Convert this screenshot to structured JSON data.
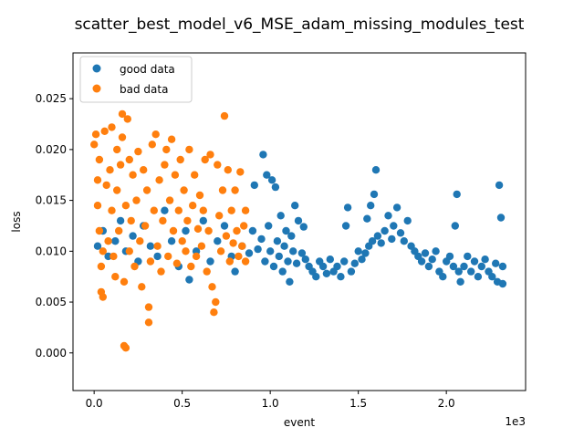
{
  "chart_data": {
    "type": "scatter",
    "title": "scatter_best_model_v6_MSE_adam_missing_modules_test",
    "xlabel": "event",
    "ylabel": "loss",
    "x_offset_text": "1e3",
    "xlim": [
      -0.12,
      2.45
    ],
    "ylim": [
      -0.0037,
      0.0295
    ],
    "xticks": [
      0.0,
      0.5,
      1.0,
      1.5,
      2.0
    ],
    "xtick_labels": [
      "0.0",
      "0.5",
      "1.0",
      "1.5",
      "2.0"
    ],
    "yticks": [
      0.0,
      0.005,
      0.01,
      0.015,
      0.02,
      0.025
    ],
    "ytick_labels": [
      "0.000",
      "0.005",
      "0.010",
      "0.015",
      "0.020",
      "0.025"
    ],
    "grid": false,
    "legend": {
      "placement": "top-left"
    },
    "series": [
      {
        "name": "good data",
        "color": "#1f77b4",
        "points": [
          [
            0.02,
            0.0105
          ],
          [
            0.05,
            0.012
          ],
          [
            0.08,
            0.0095
          ],
          [
            0.12,
            0.011
          ],
          [
            0.15,
            0.013
          ],
          [
            0.18,
            0.01
          ],
          [
            0.22,
            0.0115
          ],
          [
            0.25,
            0.009
          ],
          [
            0.28,
            0.0125
          ],
          [
            0.32,
            0.0105
          ],
          [
            0.36,
            0.0095
          ],
          [
            0.4,
            0.014
          ],
          [
            0.44,
            0.011
          ],
          [
            0.48,
            0.0085
          ],
          [
            0.52,
            0.012
          ],
          [
            0.54,
            0.0072
          ],
          [
            0.58,
            0.01
          ],
          [
            0.62,
            0.013
          ],
          [
            0.66,
            0.009
          ],
          [
            0.7,
            0.011
          ],
          [
            0.74,
            0.0125
          ],
          [
            0.78,
            0.0095
          ],
          [
            0.8,
            0.008
          ],
          [
            0.84,
            0.0105
          ],
          [
            0.88,
            0.0098
          ],
          [
            0.9,
            0.012
          ],
          [
            0.91,
            0.0165
          ],
          [
            0.93,
            0.0102
          ],
          [
            0.95,
            0.0112
          ],
          [
            0.96,
            0.0195
          ],
          [
            0.97,
            0.009
          ],
          [
            0.98,
            0.0175
          ],
          [
            0.99,
            0.0125
          ],
          [
            1.0,
            0.01
          ],
          [
            1.01,
            0.017
          ],
          [
            1.02,
            0.0085
          ],
          [
            1.03,
            0.0163
          ],
          [
            1.04,
            0.011
          ],
          [
            1.05,
            0.0095
          ],
          [
            1.06,
            0.0135
          ],
          [
            1.07,
            0.008
          ],
          [
            1.08,
            0.0105
          ],
          [
            1.09,
            0.012
          ],
          [
            1.1,
            0.009
          ],
          [
            1.11,
            0.007
          ],
          [
            1.12,
            0.0115
          ],
          [
            1.13,
            0.01
          ],
          [
            1.14,
            0.0145
          ],
          [
            1.15,
            0.0088
          ],
          [
            1.16,
            0.013
          ],
          [
            1.18,
            0.0098
          ],
          [
            1.19,
            0.0124
          ],
          [
            1.2,
            0.0092
          ],
          [
            1.22,
            0.0085
          ],
          [
            1.24,
            0.008
          ],
          [
            1.26,
            0.0075
          ],
          [
            1.28,
            0.009
          ],
          [
            1.3,
            0.0085
          ],
          [
            1.32,
            0.0078
          ],
          [
            1.34,
            0.0092
          ],
          [
            1.36,
            0.008
          ],
          [
            1.38,
            0.0085
          ],
          [
            1.4,
            0.0075
          ],
          [
            1.42,
            0.009
          ],
          [
            1.43,
            0.0125
          ],
          [
            1.44,
            0.0143
          ],
          [
            1.46,
            0.008
          ],
          [
            1.48,
            0.0088
          ],
          [
            1.5,
            0.01
          ],
          [
            1.52,
            0.0092
          ],
          [
            1.54,
            0.0098
          ],
          [
            1.55,
            0.0132
          ],
          [
            1.56,
            0.0105
          ],
          [
            1.57,
            0.0145
          ],
          [
            1.58,
            0.011
          ],
          [
            1.59,
            0.0156
          ],
          [
            1.6,
            0.018
          ],
          [
            1.61,
            0.0115
          ],
          [
            1.63,
            0.0108
          ],
          [
            1.65,
            0.012
          ],
          [
            1.67,
            0.0135
          ],
          [
            1.69,
            0.0112
          ],
          [
            1.7,
            0.0125
          ],
          [
            1.72,
            0.0143
          ],
          [
            1.74,
            0.0118
          ],
          [
            1.76,
            0.011
          ],
          [
            1.78,
            0.013
          ],
          [
            1.8,
            0.0105
          ],
          [
            1.82,
            0.01
          ],
          [
            1.84,
            0.0095
          ],
          [
            1.86,
            0.009
          ],
          [
            1.88,
            0.0098
          ],
          [
            1.9,
            0.0085
          ],
          [
            1.92,
            0.0092
          ],
          [
            1.94,
            0.01
          ],
          [
            1.96,
            0.008
          ],
          [
            1.98,
            0.0075
          ],
          [
            2.0,
            0.009
          ],
          [
            2.02,
            0.0095
          ],
          [
            2.04,
            0.0085
          ],
          [
            2.05,
            0.0125
          ],
          [
            2.06,
            0.0156
          ],
          [
            2.07,
            0.008
          ],
          [
            2.08,
            0.007
          ],
          [
            2.1,
            0.0085
          ],
          [
            2.12,
            0.0095
          ],
          [
            2.14,
            0.008
          ],
          [
            2.16,
            0.009
          ],
          [
            2.18,
            0.0075
          ],
          [
            2.2,
            0.0085
          ],
          [
            2.22,
            0.0092
          ],
          [
            2.24,
            0.008
          ],
          [
            2.26,
            0.0075
          ],
          [
            2.28,
            0.0088
          ],
          [
            2.29,
            0.007
          ],
          [
            2.3,
            0.0165
          ],
          [
            2.31,
            0.0133
          ],
          [
            2.32,
            0.0085
          ],
          [
            2.32,
            0.0068
          ]
        ]
      },
      {
        "name": "bad data",
        "color": "#ff7f0e",
        "points": [
          [
            0.0,
            0.0205
          ],
          [
            0.01,
            0.0215
          ],
          [
            0.02,
            0.0145
          ],
          [
            0.02,
            0.017
          ],
          [
            0.03,
            0.019
          ],
          [
            0.03,
            0.012
          ],
          [
            0.04,
            0.006
          ],
          [
            0.04,
            0.0085
          ],
          [
            0.05,
            0.0055
          ],
          [
            0.05,
            0.01
          ],
          [
            0.06,
            0.0218
          ],
          [
            0.07,
            0.0165
          ],
          [
            0.08,
            0.011
          ],
          [
            0.09,
            0.018
          ],
          [
            0.1,
            0.014
          ],
          [
            0.1,
            0.0222
          ],
          [
            0.11,
            0.0095
          ],
          [
            0.12,
            0.0075
          ],
          [
            0.13,
            0.02
          ],
          [
            0.13,
            0.016
          ],
          [
            0.14,
            0.012
          ],
          [
            0.15,
            0.0185
          ],
          [
            0.16,
            0.0235
          ],
          [
            0.16,
            0.0212
          ],
          [
            0.17,
            0.0007
          ],
          [
            0.17,
            0.007
          ],
          [
            0.18,
            0.0005
          ],
          [
            0.18,
            0.0145
          ],
          [
            0.19,
            0.023
          ],
          [
            0.2,
            0.019
          ],
          [
            0.2,
            0.01
          ],
          [
            0.21,
            0.013
          ],
          [
            0.22,
            0.0175
          ],
          [
            0.23,
            0.0085
          ],
          [
            0.24,
            0.015
          ],
          [
            0.25,
            0.0198
          ],
          [
            0.26,
            0.011
          ],
          [
            0.27,
            0.0065
          ],
          [
            0.28,
            0.018
          ],
          [
            0.29,
            0.0125
          ],
          [
            0.3,
            0.016
          ],
          [
            0.31,
            0.003
          ],
          [
            0.31,
            0.0045
          ],
          [
            0.32,
            0.009
          ],
          [
            0.33,
            0.0205
          ],
          [
            0.34,
            0.014
          ],
          [
            0.35,
            0.0215
          ],
          [
            0.36,
            0.0105
          ],
          [
            0.37,
            0.017
          ],
          [
            0.38,
            0.008
          ],
          [
            0.39,
            0.013
          ],
          [
            0.4,
            0.0185
          ],
          [
            0.41,
            0.02
          ],
          [
            0.42,
            0.0095
          ],
          [
            0.43,
            0.015
          ],
          [
            0.44,
            0.021
          ],
          [
            0.45,
            0.012
          ],
          [
            0.46,
            0.0175
          ],
          [
            0.47,
            0.0088
          ],
          [
            0.48,
            0.014
          ],
          [
            0.49,
            0.019
          ],
          [
            0.5,
            0.011
          ],
          [
            0.51,
            0.016
          ],
          [
            0.52,
            0.01
          ],
          [
            0.53,
            0.013
          ],
          [
            0.54,
            0.02
          ],
          [
            0.55,
            0.0085
          ],
          [
            0.56,
            0.0145
          ],
          [
            0.57,
            0.0175
          ],
          [
            0.58,
            0.0095
          ],
          [
            0.59,
            0.0122
          ],
          [
            0.6,
            0.0155
          ],
          [
            0.61,
            0.0105
          ],
          [
            0.62,
            0.014
          ],
          [
            0.63,
            0.019
          ],
          [
            0.64,
            0.008
          ],
          [
            0.65,
            0.012
          ],
          [
            0.66,
            0.0195
          ],
          [
            0.67,
            0.0065
          ],
          [
            0.68,
            0.004
          ],
          [
            0.69,
            0.005
          ],
          [
            0.7,
            0.0185
          ],
          [
            0.71,
            0.0135
          ],
          [
            0.72,
            0.01
          ],
          [
            0.73,
            0.016
          ],
          [
            0.74,
            0.0233
          ],
          [
            0.75,
            0.0115
          ],
          [
            0.76,
            0.018
          ],
          [
            0.77,
            0.009
          ],
          [
            0.78,
            0.014
          ],
          [
            0.79,
            0.0108
          ],
          [
            0.8,
            0.016
          ],
          [
            0.81,
            0.012
          ],
          [
            0.82,
            0.0095
          ],
          [
            0.83,
            0.0178
          ],
          [
            0.84,
            0.0105
          ],
          [
            0.85,
            0.0125
          ],
          [
            0.86,
            0.009
          ],
          [
            0.86,
            0.014
          ]
        ]
      }
    ]
  }
}
